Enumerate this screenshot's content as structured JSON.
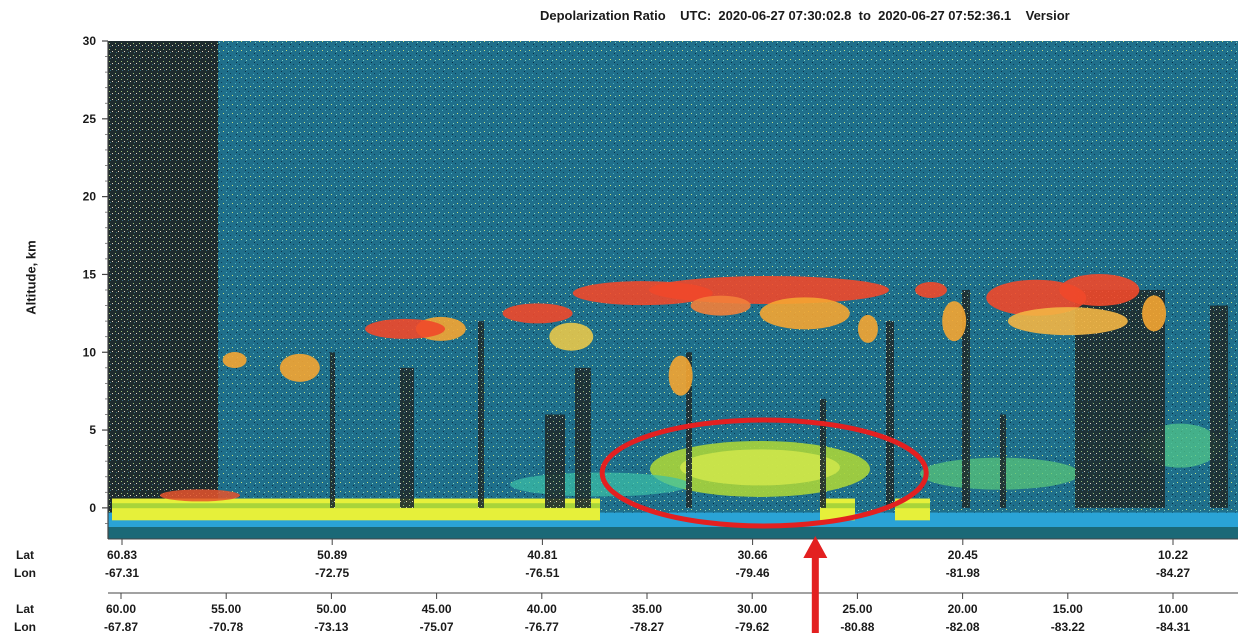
{
  "header": {
    "title_prefix": "Depolarization Ratio",
    "utc_label": "UTC:",
    "utc_start": "2020-06-27 07:30:02.8",
    "utc_to": "to",
    "utc_end": "2020-06-27 07:52:36.1",
    "version_label": "Versior"
  },
  "chart_data": {
    "type": "heatmap",
    "title": "Depolarization Ratio   UTC:  2020-06-27 07:30:02.8  to  2020-06-27 07:52:36.1   Versior",
    "ylabel": "Altitude, km",
    "ylim": [
      -2,
      30
    ],
    "yticks": [
      0,
      5,
      10,
      15,
      20,
      25,
      30
    ],
    "row_label_lat": "Lat",
    "row_label_lon": "Lon",
    "track_upper": [
      {
        "lat": "60.83",
        "lon": "-67.31"
      },
      {
        "lat": "50.89",
        "lon": "-72.75"
      },
      {
        "lat": "40.81",
        "lon": "-76.51"
      },
      {
        "lat": "30.66",
        "lon": "-79.46"
      },
      {
        "lat": "20.45",
        "lon": "-81.98"
      },
      {
        "lat": "10.22",
        "lon": "-84.27"
      }
    ],
    "track_lower": [
      {
        "lat": "60.00",
        "lon": "-67.87"
      },
      {
        "lat": "55.00",
        "lon": "-70.78"
      },
      {
        "lat": "50.00",
        "lon": "-73.13"
      },
      {
        "lat": "45.00",
        "lon": "-75.07"
      },
      {
        "lat": "40.00",
        "lon": "-76.77"
      },
      {
        "lat": "35.00",
        "lon": "-78.27"
      },
      {
        "lat": "30.00",
        "lon": "-79.62"
      },
      {
        "lat": "25.00",
        "lon": "-80.88"
      },
      {
        "lat": "20.00",
        "lon": "-82.08"
      },
      {
        "lat": "15.00",
        "lon": "-83.22"
      },
      {
        "lat": "10.00",
        "lon": "-84.31"
      }
    ],
    "colors": {
      "background_noise": "#1d6f8a",
      "low_noise": "#1a2a2e",
      "cirrus_high": "#f0482a",
      "cirrus_mid": "#f4a532",
      "aerosol": "#a8d43a",
      "aerosol_light": "#d3e84c",
      "surface": "#e6f03a",
      "below_surface": "#2aa3d6",
      "annotation": "#e32020"
    },
    "annotations": [
      {
        "kind": "ellipse",
        "label": "aerosol layer highlight",
        "center_lat": 30.0,
        "center_alt_km": 2.5
      },
      {
        "kind": "arrow",
        "label": "pointer",
        "lat": 27.0
      }
    ]
  }
}
